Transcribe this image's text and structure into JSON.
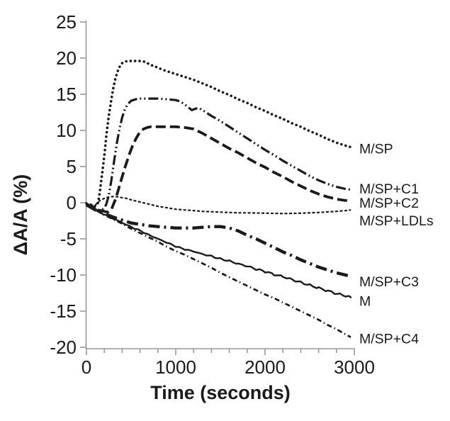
{
  "chart_data": {
    "type": "line",
    "title": "",
    "xlabel": "Time (seconds)",
    "ylabel": "ΔA/A (%)",
    "xlim": [
      0,
      3000
    ],
    "ylim": [
      -20,
      25
    ],
    "x_ticks": [
      0,
      1000,
      2000,
      3000
    ],
    "x_minor_tick_step": 200,
    "y_ticks": [
      25,
      20,
      15,
      10,
      5,
      0,
      -5,
      -10,
      -15,
      -20
    ],
    "grid": false,
    "legend_position": "labels at right end of each line",
    "ink_color": "#1a1a1a",
    "axis_color": "#999999",
    "background_color": "#ffffff",
    "series": [
      {
        "name": "M/SP",
        "line_style": "dotted",
        "label_v": 7.5,
        "points": [
          [
            0,
            -0.1
          ],
          [
            60,
            -0.3
          ],
          [
            100,
            -0.5
          ],
          [
            130,
            0
          ],
          [
            150,
            1.5
          ],
          [
            175,
            4
          ],
          [
            200,
            6.5
          ],
          [
            225,
            9.5
          ],
          [
            250,
            12
          ],
          [
            275,
            14
          ],
          [
            300,
            15.8
          ],
          [
            325,
            17.2
          ],
          [
            350,
            18.2
          ],
          [
            375,
            18.9
          ],
          [
            400,
            19.3
          ],
          [
            430,
            19.5
          ],
          [
            460,
            19.6
          ],
          [
            550,
            19.6
          ],
          [
            600,
            19.6
          ],
          [
            650,
            19.5
          ],
          [
            700,
            19.2
          ],
          [
            750,
            18.9
          ],
          [
            800,
            18.7
          ],
          [
            850,
            18.4
          ],
          [
            900,
            18.2
          ],
          [
            950,
            18.0
          ],
          [
            1000,
            17.8
          ],
          [
            1100,
            17.4
          ],
          [
            1200,
            17.0
          ],
          [
            1300,
            16.5
          ],
          [
            1400,
            16.0
          ],
          [
            1500,
            15.4
          ],
          [
            1600,
            14.9
          ],
          [
            1700,
            14.3
          ],
          [
            1800,
            13.8
          ],
          [
            1900,
            13.2
          ],
          [
            2000,
            12.7
          ],
          [
            2100,
            12.1
          ],
          [
            2200,
            11.6
          ],
          [
            2300,
            11.0
          ],
          [
            2400,
            10.5
          ],
          [
            2500,
            9.9
          ],
          [
            2600,
            9.4
          ],
          [
            2700,
            8.8
          ],
          [
            2800,
            8.3
          ],
          [
            2900,
            7.9
          ],
          [
            2960,
            7.7
          ]
        ]
      },
      {
        "name": "M/SP+C1",
        "line_style": "dash-dot-dot",
        "label_v": 1.95,
        "points": [
          [
            0,
            -0.2
          ],
          [
            80,
            -0.7
          ],
          [
            140,
            -1.0
          ],
          [
            180,
            -0.9
          ],
          [
            220,
            -0.3
          ],
          [
            250,
            1.0
          ],
          [
            280,
            3.2
          ],
          [
            310,
            5.8
          ],
          [
            340,
            8.2
          ],
          [
            370,
            10.2
          ],
          [
            400,
            11.8
          ],
          [
            430,
            12.9
          ],
          [
            460,
            13.6
          ],
          [
            500,
            14.1
          ],
          [
            550,
            14.3
          ],
          [
            600,
            14.4
          ],
          [
            700,
            14.4
          ],
          [
            800,
            14.4
          ],
          [
            900,
            14.3
          ],
          [
            1000,
            14.2
          ],
          [
            1050,
            14.0
          ],
          [
            1100,
            13.6
          ],
          [
            1150,
            13.1
          ],
          [
            1180,
            12.8
          ],
          [
            1220,
            13.0
          ],
          [
            1260,
            13.1
          ],
          [
            1300,
            12.8
          ],
          [
            1400,
            12.0
          ],
          [
            1500,
            11.3
          ],
          [
            1600,
            10.5
          ],
          [
            1700,
            9.7
          ],
          [
            1800,
            8.9
          ],
          [
            1900,
            8.1
          ],
          [
            2000,
            7.3
          ],
          [
            2100,
            6.6
          ],
          [
            2200,
            5.8
          ],
          [
            2300,
            5.1
          ],
          [
            2400,
            4.4
          ],
          [
            2500,
            3.7
          ],
          [
            2600,
            3.1
          ],
          [
            2700,
            2.6
          ],
          [
            2800,
            2.2
          ],
          [
            2900,
            1.9
          ],
          [
            2960,
            1.8
          ]
        ]
      },
      {
        "name": "M/SP+C2",
        "line_style": "long-dash",
        "label_v": 0.0,
        "points": [
          [
            0,
            -0.2
          ],
          [
            80,
            -0.8
          ],
          [
            160,
            -1.1
          ],
          [
            240,
            -1.3
          ],
          [
            280,
            -0.9
          ],
          [
            320,
            0.3
          ],
          [
            360,
            1.9
          ],
          [
            400,
            3.6
          ],
          [
            440,
            5.2
          ],
          [
            480,
            6.7
          ],
          [
            520,
            8.0
          ],
          [
            560,
            9.0
          ],
          [
            600,
            9.8
          ],
          [
            640,
            10.2
          ],
          [
            680,
            10.4
          ],
          [
            720,
            10.5
          ],
          [
            800,
            10.5
          ],
          [
            900,
            10.5
          ],
          [
            1000,
            10.5
          ],
          [
            1100,
            10.4
          ],
          [
            1200,
            10.2
          ],
          [
            1300,
            9.6
          ],
          [
            1400,
            8.9
          ],
          [
            1500,
            8.2
          ],
          [
            1600,
            7.5
          ],
          [
            1700,
            6.9
          ],
          [
            1800,
            6.2
          ],
          [
            1900,
            5.5
          ],
          [
            2000,
            4.9
          ],
          [
            2100,
            4.2
          ],
          [
            2200,
            3.6
          ],
          [
            2300,
            2.9
          ],
          [
            2400,
            2.3
          ],
          [
            2500,
            1.7
          ],
          [
            2600,
            1.2
          ],
          [
            2700,
            0.8
          ],
          [
            2800,
            0.5
          ],
          [
            2900,
            0.3
          ],
          [
            2960,
            0.3
          ]
        ]
      },
      {
        "name": "M/SP+LDLs",
        "line_style": "short-dash",
        "label_v": -2.45,
        "points": [
          [
            0,
            -0.1
          ],
          [
            50,
            -0.4
          ],
          [
            100,
            -0.3
          ],
          [
            150,
            0.3
          ],
          [
            200,
            0.6
          ],
          [
            250,
            0.8
          ],
          [
            300,
            0.85
          ],
          [
            350,
            0.8
          ],
          [
            400,
            0.7
          ],
          [
            450,
            0.6
          ],
          [
            500,
            0.4
          ],
          [
            600,
            0.1
          ],
          [
            700,
            -0.2
          ],
          [
            800,
            -0.5
          ],
          [
            900,
            -0.7
          ],
          [
            1000,
            -0.9
          ],
          [
            1100,
            -1.0
          ],
          [
            1200,
            -1.1
          ],
          [
            1300,
            -1.2
          ],
          [
            1400,
            -1.25
          ],
          [
            1500,
            -1.3
          ],
          [
            1600,
            -1.35
          ],
          [
            1700,
            -1.4
          ],
          [
            1800,
            -1.4
          ],
          [
            2000,
            -1.45
          ],
          [
            2200,
            -1.5
          ],
          [
            2400,
            -1.45
          ],
          [
            2600,
            -1.35
          ],
          [
            2800,
            -1.2
          ],
          [
            2900,
            -1.1
          ],
          [
            2960,
            -1.0
          ]
        ]
      },
      {
        "name": "M/SP+C3",
        "line_style": "thick-dash-dot",
        "label_v": -10.9,
        "points": [
          [
            0,
            -0.3
          ],
          [
            100,
            -1.0
          ],
          [
            200,
            -1.5
          ],
          [
            300,
            -2.0
          ],
          [
            400,
            -2.4
          ],
          [
            500,
            -2.8
          ],
          [
            600,
            -3.0
          ],
          [
            700,
            -3.2
          ],
          [
            800,
            -3.3
          ],
          [
            900,
            -3.4
          ],
          [
            1000,
            -3.5
          ],
          [
            1100,
            -3.5
          ],
          [
            1200,
            -3.5
          ],
          [
            1300,
            -3.4
          ],
          [
            1400,
            -3.3
          ],
          [
            1500,
            -3.3
          ],
          [
            1600,
            -3.5
          ],
          [
            1700,
            -3.9
          ],
          [
            1800,
            -4.5
          ],
          [
            1900,
            -5.0
          ],
          [
            2000,
            -5.6
          ],
          [
            2100,
            -6.2
          ],
          [
            2200,
            -6.8
          ],
          [
            2300,
            -7.3
          ],
          [
            2400,
            -7.9
          ],
          [
            2500,
            -8.4
          ],
          [
            2600,
            -8.9
          ],
          [
            2700,
            -9.3
          ],
          [
            2800,
            -9.7
          ],
          [
            2900,
            -10.0
          ],
          [
            2960,
            -10.2
          ]
        ]
      },
      {
        "name": "M",
        "line_style": "solid-noisy",
        "label_v": -13.6,
        "points": [
          [
            0,
            -0.2
          ],
          [
            100,
            -0.9
          ],
          [
            200,
            -1.6
          ],
          [
            300,
            -2.2
          ],
          [
            400,
            -2.8
          ],
          [
            500,
            -3.4
          ],
          [
            600,
            -3.9
          ],
          [
            700,
            -4.5
          ],
          [
            800,
            -5.0
          ],
          [
            900,
            -5.5
          ],
          [
            1000,
            -6.0
          ],
          [
            1100,
            -6.4
          ],
          [
            1200,
            -6.7
          ],
          [
            1300,
            -7.1
          ],
          [
            1400,
            -7.4
          ],
          [
            1500,
            -7.8
          ],
          [
            1600,
            -8.1
          ],
          [
            1700,
            -8.5
          ],
          [
            1800,
            -8.8
          ],
          [
            1900,
            -9.2
          ],
          [
            2000,
            -9.5
          ],
          [
            2100,
            -9.9
          ],
          [
            2200,
            -10.2
          ],
          [
            2300,
            -10.6
          ],
          [
            2400,
            -11.0
          ],
          [
            2500,
            -11.4
          ],
          [
            2600,
            -11.8
          ],
          [
            2700,
            -12.2
          ],
          [
            2800,
            -12.6
          ],
          [
            2900,
            -12.9
          ],
          [
            2960,
            -13.1
          ]
        ]
      },
      {
        "name": "M/SP+C4",
        "line_style": "fine-dash-dot",
        "label_v": -18.75,
        "points": [
          [
            0,
            -0.3
          ],
          [
            100,
            -1.0
          ],
          [
            200,
            -1.7
          ],
          [
            300,
            -2.3
          ],
          [
            400,
            -2.9
          ],
          [
            500,
            -3.6
          ],
          [
            600,
            -4.2
          ],
          [
            700,
            -4.8
          ],
          [
            800,
            -5.4
          ],
          [
            900,
            -6.1
          ],
          [
            1000,
            -6.7
          ],
          [
            1100,
            -7.2
          ],
          [
            1200,
            -7.8
          ],
          [
            1300,
            -8.4
          ],
          [
            1400,
            -9.0
          ],
          [
            1500,
            -9.7
          ],
          [
            1600,
            -10.3
          ],
          [
            1700,
            -10.9
          ],
          [
            1800,
            -11.5
          ],
          [
            1900,
            -12.1
          ],
          [
            2000,
            -12.7
          ],
          [
            2100,
            -13.2
          ],
          [
            2200,
            -13.8
          ],
          [
            2300,
            -14.4
          ],
          [
            2400,
            -15.0
          ],
          [
            2500,
            -15.6
          ],
          [
            2600,
            -16.2
          ],
          [
            2700,
            -16.9
          ],
          [
            2800,
            -17.5
          ],
          [
            2900,
            -18.2
          ],
          [
            2960,
            -18.6
          ]
        ]
      }
    ]
  }
}
